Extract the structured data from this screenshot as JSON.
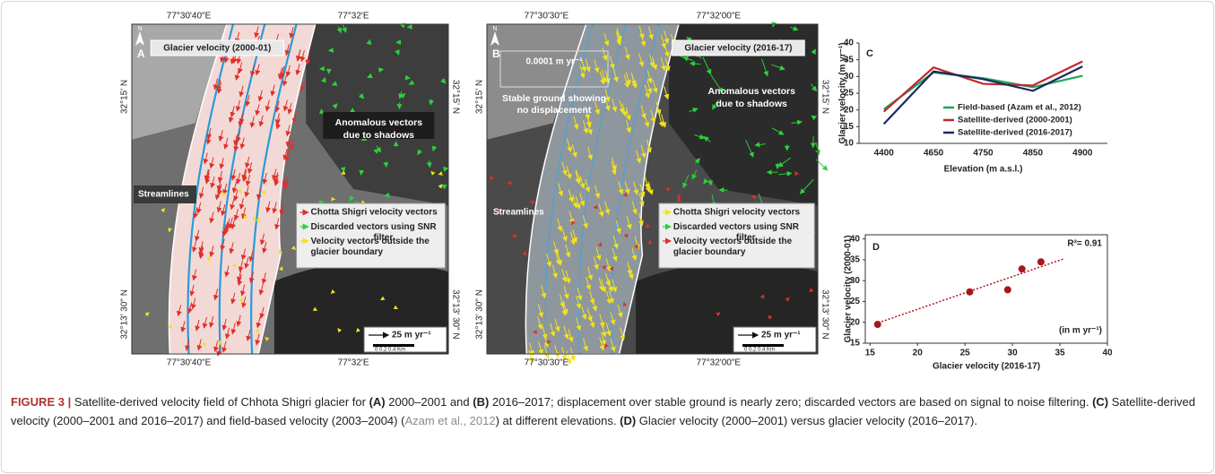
{
  "panel_a": {
    "title": "Glacier velocity (2000-01)",
    "letter": "A",
    "north": "N",
    "lon_labels": [
      "77°30'40\"E",
      "77°32'E"
    ],
    "lat_labels": [
      "32°15' N",
      "32°13' 30\" N"
    ],
    "anomalous": "Anomalous vectors due to shadows",
    "streamlines": "Streamlines",
    "legend": [
      "Chotta Shigri velocity vectors",
      "Discarded vectors using SNR filter",
      "Velocity vectors outside the glacier boundary"
    ],
    "scale_arrow": "25 m yr⁻¹",
    "scale_bar": "0   0.2  0.4 Km"
  },
  "panel_b": {
    "title": "Glacier velocity (2016-17)",
    "letter": "B",
    "north": "N",
    "lon_labels": [
      "77°30'30\"E",
      "77°32'00\"E"
    ],
    "lat_labels": [
      "32°15' N",
      "32°13' 30\" N"
    ],
    "stable_value": "0.0001 m yr⁻¹",
    "stable": "Stable ground showing no displacement",
    "anomalous": "Anomalous vectors due to shadows",
    "streamlines": "Streamlines",
    "legend": [
      "Chotta Shigri velocity vectors",
      "Discarded vectors using SNR filter",
      "Velocity vectors outside the glacier boundary"
    ],
    "scale_arrow": "25 m yr⁻¹",
    "scale_bar": "0   0.2  0.4 Km"
  },
  "chart_data": [
    {
      "type": "line",
      "letter": "C",
      "x_label": "Elevation (m a.s.l.)",
      "y_label": "Glacier velocity (m yr⁻¹)",
      "categories": [
        "4400",
        "4650",
        "4750",
        "4850",
        "4900"
      ],
      "series": [
        {
          "name": "Field-based (Azam et al., 2012)",
          "color": "#1fa65a",
          "values": [
            20.2,
            31.2,
            29.5,
            26.8,
            30.2
          ]
        },
        {
          "name": "Satellite-derived (2000-2001)",
          "color": "#c0282d",
          "values": [
            19.5,
            32.7,
            27.8,
            27.3,
            34.5
          ]
        },
        {
          "name": "Satellite-derived (2016-2017)",
          "color": "#1c2a5e",
          "values": [
            15.8,
            31.5,
            29.2,
            25.7,
            33.0
          ]
        }
      ],
      "ylim": [
        10,
        40
      ],
      "yticks": [
        10,
        15,
        20,
        25,
        30,
        35,
        40
      ]
    },
    {
      "type": "scatter",
      "letter": "D",
      "x_label": "Glacier velocity (2016-17)",
      "y_label": "Glacier velocity (2000-01)",
      "annotation": "R²= 0.91",
      "unit_note": "(in m yr⁻¹)",
      "color": "#a8161c",
      "x": [
        15.8,
        25.5,
        29.5,
        31.0,
        33.0
      ],
      "values": [
        19.5,
        27.3,
        27.8,
        32.8,
        34.5
      ],
      "trendline": {
        "x": [
          15.5,
          35.5
        ],
        "y": [
          19.6,
          35.3
        ]
      },
      "xlim": [
        14.5,
        40
      ],
      "xticks": [
        15,
        20,
        25,
        30,
        35,
        40
      ],
      "ylim": [
        15,
        41
      ],
      "yticks": [
        15,
        20,
        25,
        30,
        35,
        40
      ]
    }
  ],
  "caption": {
    "parts": [
      "FIGURE 3 |",
      " Satellite-derived velocity field of Chhota Shigri glacier for ",
      "(A)",
      " 2000–2001 and ",
      "(B)",
      " 2016–2017; displacement over stable ground is nearly zero; discarded vectors are based on signal to noise filtering. ",
      "(C)",
      " Satellite-derived velocity (2000–2001 and 2016–2017) and field-based velocity (2003–2004) (",
      "Azam et al., 2012",
      ") at different elevations. ",
      "(D)",
      " Glacier velocity (2000–2001) versus glacier velocity (2016–2017)."
    ]
  }
}
